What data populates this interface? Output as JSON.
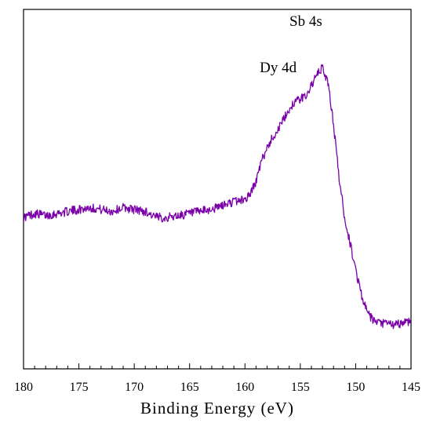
{
  "chart_data": {
    "type": "line",
    "xlabel": "Binding Energy (eV)",
    "ylabel": "",
    "xlim": [
      180,
      145
    ],
    "x_axis_reversed": true,
    "xticks": [
      180,
      175,
      170,
      165,
      160,
      155,
      150,
      145
    ],
    "y_ticks_shown": false,
    "grid": false,
    "line_color": "#7a00a8",
    "annotations": [
      {
        "text": "Sb 4s",
        "x": 154.5
      },
      {
        "text": "Dy 4d",
        "x": 157.0
      }
    ],
    "series": [
      {
        "x": [
          180,
          179,
          178,
          177,
          176,
          175,
          174,
          173,
          172,
          171,
          170,
          169,
          168,
          167,
          166,
          165,
          164,
          163,
          162,
          161,
          160,
          159.5,
          159,
          158.5,
          158,
          157.5,
          157,
          156.5,
          156,
          155.5,
          155,
          154.5,
          154,
          153.5,
          153,
          152.5,
          152,
          151.5,
          151,
          150.5,
          150,
          149.5,
          149,
          148.5,
          148,
          147.5,
          147,
          146.5,
          146,
          145.5,
          145
        ],
        "y": [
          0.58,
          0.6,
          0.59,
          0.6,
          0.61,
          0.62,
          0.63,
          0.62,
          0.61,
          0.63,
          0.62,
          0.61,
          0.58,
          0.58,
          0.59,
          0.6,
          0.61,
          0.62,
          0.64,
          0.66,
          0.67,
          0.7,
          0.76,
          0.86,
          0.93,
          0.98,
          1.02,
          1.07,
          1.12,
          1.16,
          1.17,
          1.19,
          1.24,
          1.29,
          1.33,
          1.25,
          1.05,
          0.78,
          0.58,
          0.45,
          0.32,
          0.2,
          0.11,
          0.07,
          0.05,
          0.05,
          0.05,
          0.04,
          0.05,
          0.06,
          0.06
        ]
      }
    ]
  }
}
